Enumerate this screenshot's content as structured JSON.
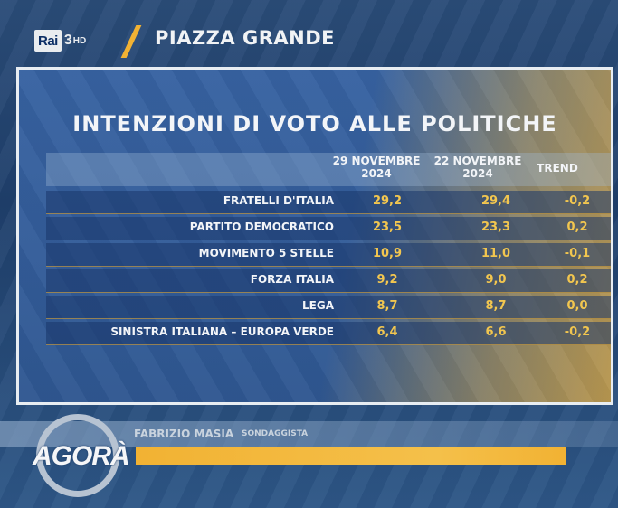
{
  "channel": {
    "brand": "Rai",
    "number": "3",
    "hd": "HD"
  },
  "program": {
    "title": "PIAZZA GRANDE"
  },
  "panel": {
    "headline": "INTENZIONI DI VOTO ALLE POLITICHE",
    "columns": {
      "col1": "29 NOVEMBRE 2024",
      "col2": "22 NOVEMBRE 2024",
      "col3": "TREND"
    },
    "rows": [
      {
        "party": "FRATELLI D'ITALIA",
        "v1": "29,2",
        "v2": "29,4",
        "trend": "-0,2"
      },
      {
        "party": "PARTITO DEMOCRATICO",
        "v1": "23,5",
        "v2": "23,3",
        "trend": "0,2"
      },
      {
        "party": "MOVIMENTO 5 STELLE",
        "v1": "10,9",
        "v2": "11,0",
        "trend": "-0,1"
      },
      {
        "party": "FORZA ITALIA",
        "v1": "9,2",
        "v2": "9,0",
        "trend": "0,2"
      },
      {
        "party": "LEGA",
        "v1": "8,7",
        "v2": "8,7",
        "trend": "0,0"
      },
      {
        "party": "SINISTRA ITALIANA – EUROPA VERDE",
        "v1": "6,4",
        "v2": "6,6",
        "trend": "-0,2"
      }
    ]
  },
  "lower_third": {
    "name": "FABRIZIO MASIA",
    "role": "SONDAGGISTA",
    "show_logo": "AGORÀ"
  },
  "colors": {
    "accent": "#f2b233",
    "value_text": "#f2c64f",
    "background": "#2a4c78"
  }
}
